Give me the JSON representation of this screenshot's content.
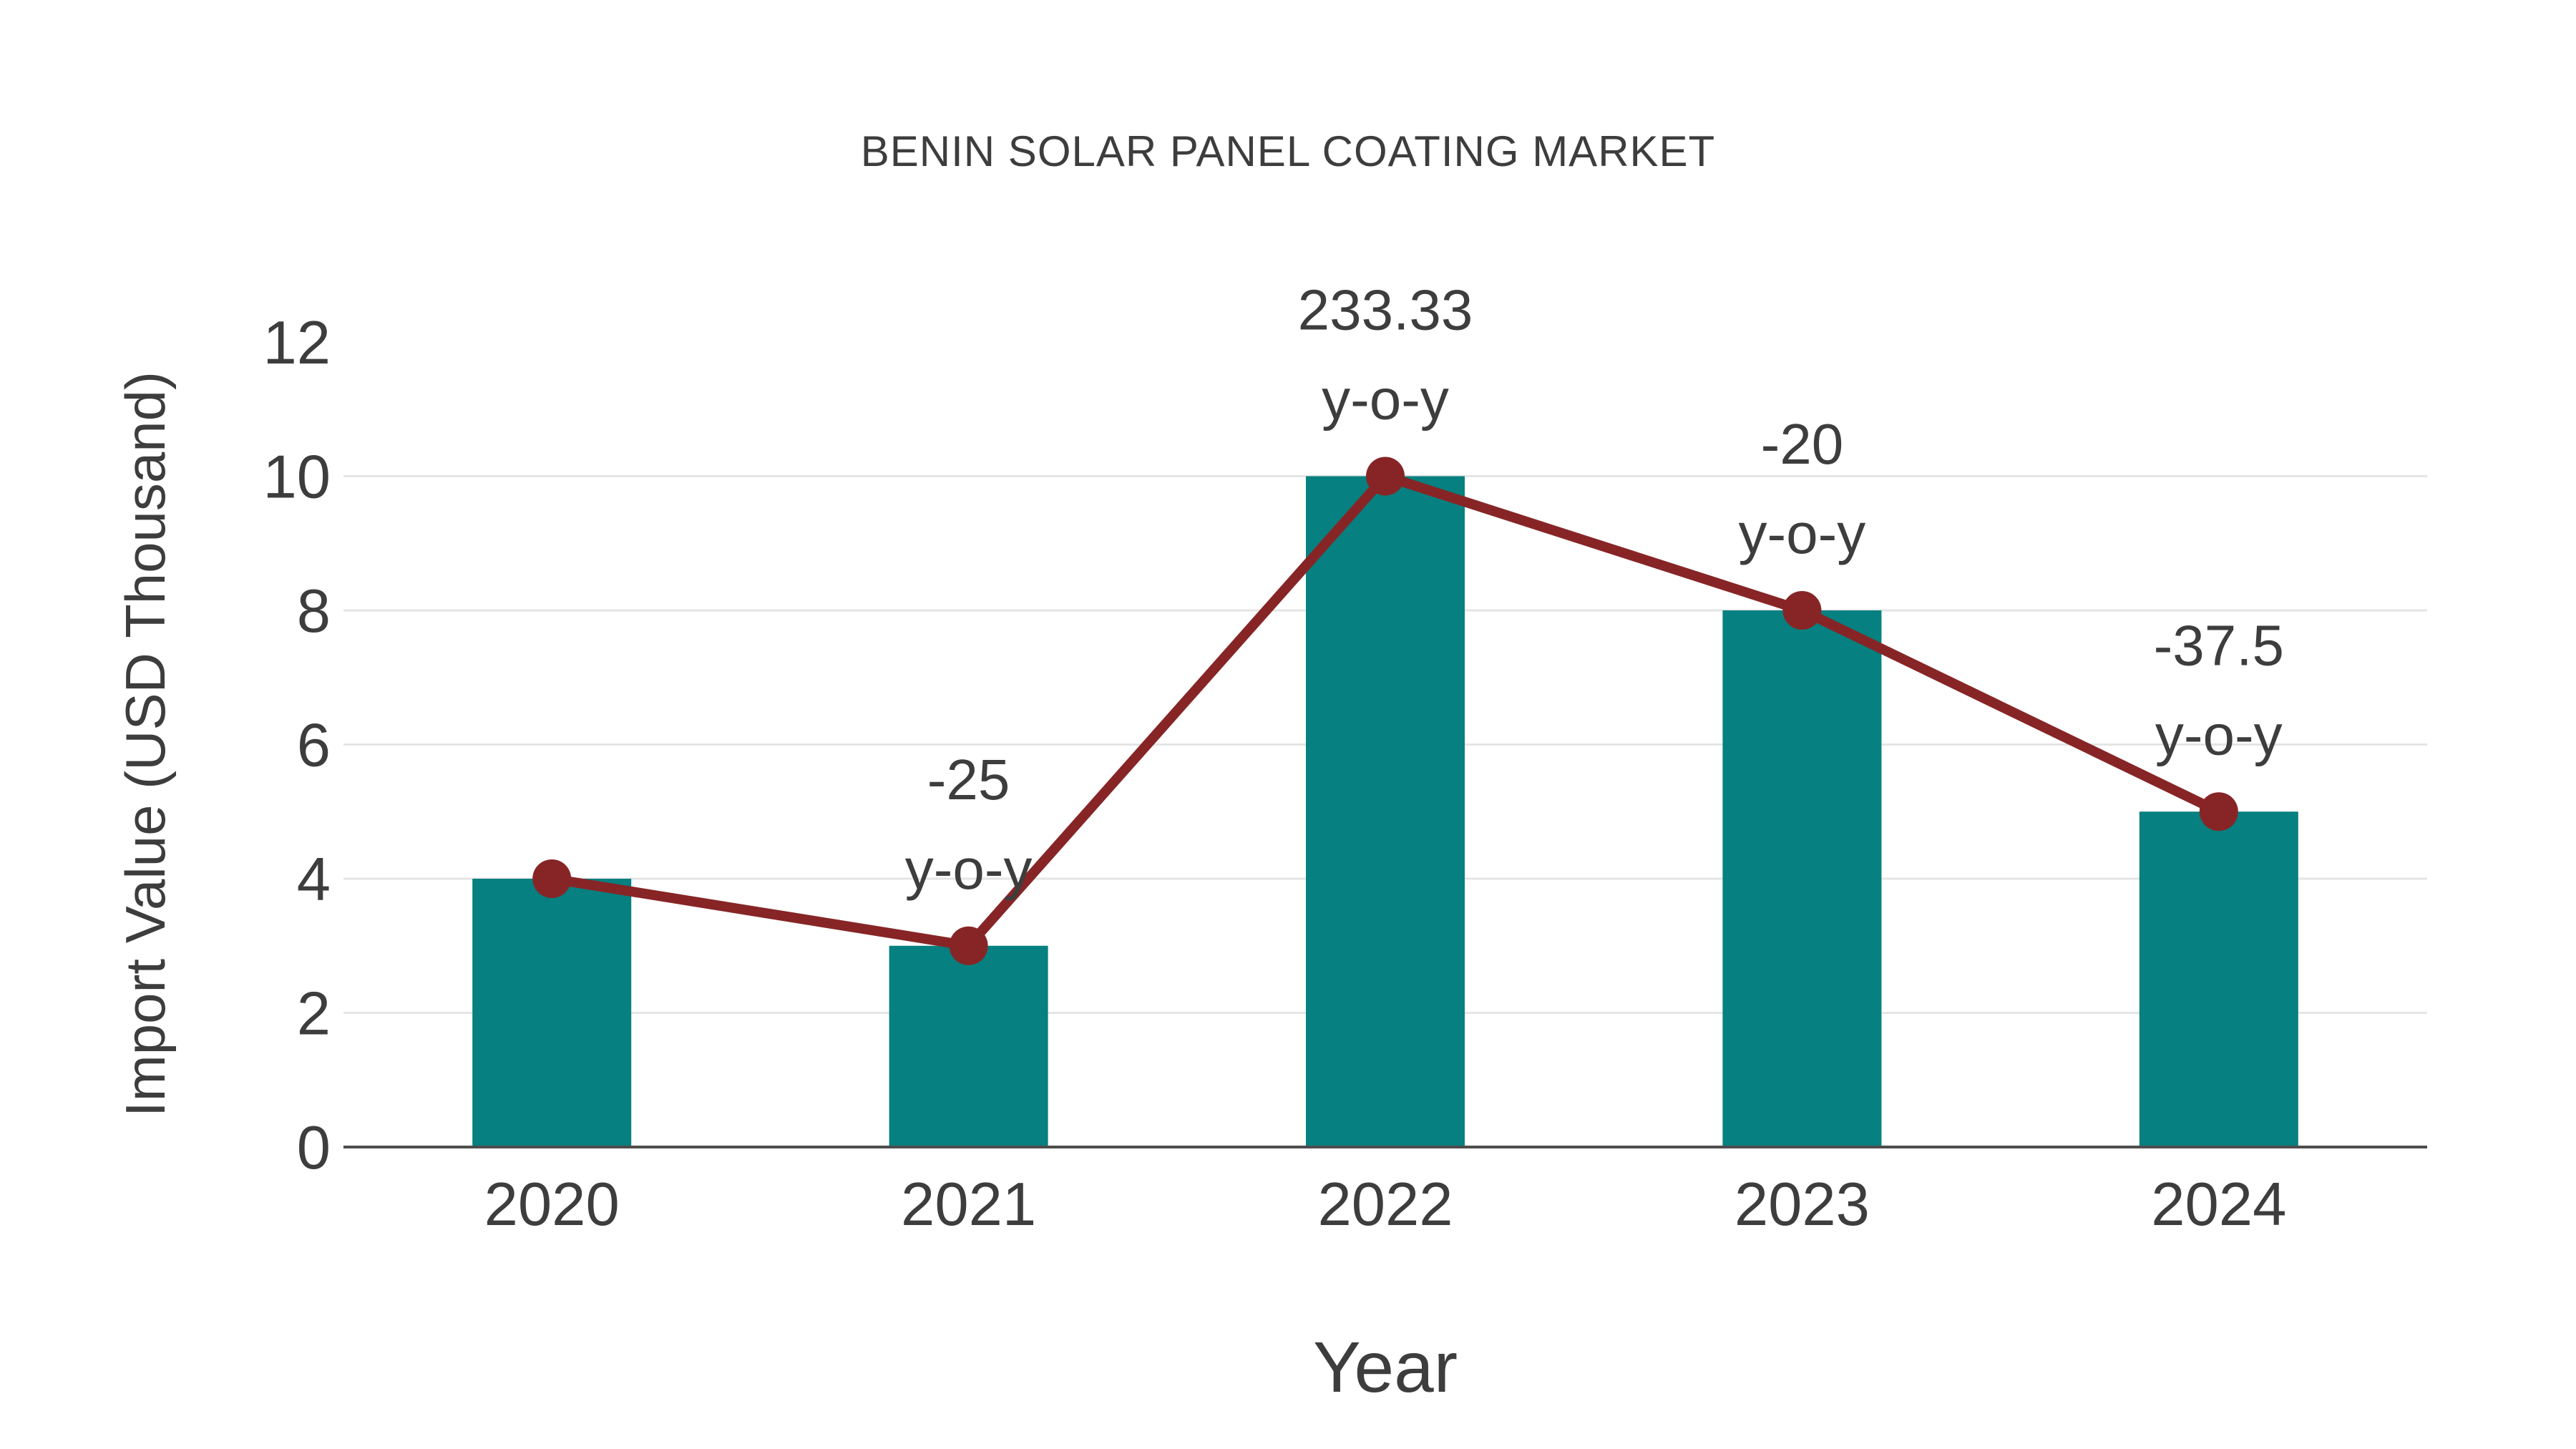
{
  "chart_data": {
    "type": "bar",
    "title": "BENIN SOLAR PANEL COATING MARKET",
    "xlabel": "Year",
    "ylabel": "Import Value (USD Thousand)",
    "categories": [
      "2020",
      "2021",
      "2022",
      "2023",
      "2024"
    ],
    "series": [
      {
        "name": "import-value-bars",
        "type": "bar",
        "values": [
          4,
          3,
          10,
          8,
          5
        ]
      },
      {
        "name": "import-value-line",
        "type": "line",
        "values": [
          4,
          3,
          10,
          8,
          5
        ]
      }
    ],
    "annotations": [
      {
        "category": "2021",
        "lines": [
          "-25",
          "y-o-y"
        ]
      },
      {
        "category": "2022",
        "lines": [
          "233.33",
          "y-o-y"
        ]
      },
      {
        "category": "2023",
        "lines": [
          "-20",
          "y-o-y"
        ]
      },
      {
        "category": "2024",
        "lines": [
          "-37.5",
          "y-o-y"
        ]
      }
    ],
    "yticks": [
      0,
      2,
      4,
      6,
      8,
      10,
      12
    ],
    "grid_values": [
      2,
      4,
      6,
      8,
      10
    ],
    "ylim": [
      0,
      12
    ],
    "legend": "none",
    "grid": "horizontal",
    "colors": {
      "bar": "#068080",
      "line": "#872526",
      "marker": "#872526",
      "gridline": "#e5e5e5",
      "axis_line": "#4d4d4d",
      "text": "#3d3d3d",
      "background": "#ffffff"
    }
  }
}
